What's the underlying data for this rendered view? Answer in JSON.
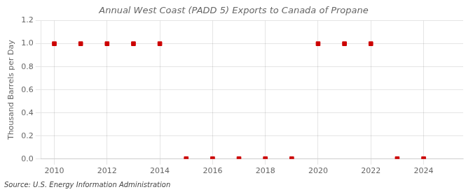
{
  "chart_data": {
    "type": "scatter",
    "title": "Annual West Coast (PADD 5) Exports to Canada of Propane",
    "ylabel": "Thousand Barrels per Day",
    "annotations": [
      "Source: U.S. Energy Information Administration"
    ],
    "x": [
      2010,
      2011,
      2012,
      2013,
      2014,
      2015,
      2016,
      2017,
      2018,
      2019,
      2020,
      2021,
      2022,
      2023,
      2024
    ],
    "values": [
      1.0,
      1.0,
      1.0,
      1.0,
      1.0,
      0.003,
      0.003,
      0.003,
      0.003,
      0.003,
      1.0,
      1.0,
      1.0,
      0.003,
      0.003
    ],
    "color": "#cc0000",
    "marker": "square",
    "xlim": [
      2009.5,
      2025.5
    ],
    "xticks": [
      2010,
      2012,
      2014,
      2016,
      2018,
      2020,
      2022,
      2024
    ],
    "ylim": [
      0.0,
      1.2
    ],
    "yticks": [
      {
        "value": 0.0,
        "label": "0.0"
      },
      0.2,
      0.4,
      0.6,
      0.8,
      {
        "value": 1.0,
        "label": "1.0"
      },
      1.2
    ],
    "grid": true
  }
}
